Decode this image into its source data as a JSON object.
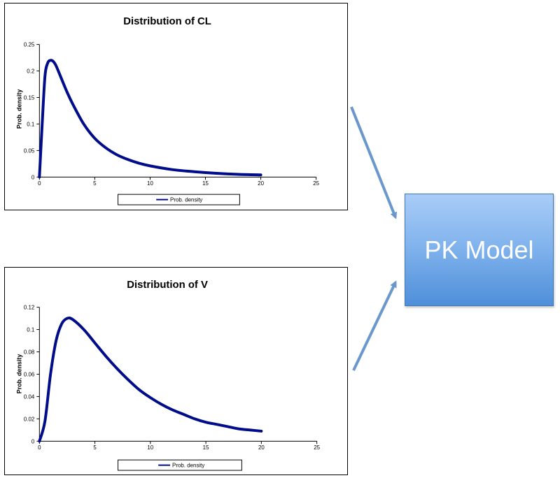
{
  "colors": {
    "curve": "#000c8a",
    "arrow": "#6a98cc",
    "box_top": "#a9cdf7",
    "box_bottom": "#4f8fd9"
  },
  "model_box": {
    "label": "PK Model"
  },
  "chart_data": [
    {
      "type": "line",
      "title": "Distribution of CL",
      "xlabel": "",
      "ylabel": "Prob. density",
      "xlim": [
        0,
        25
      ],
      "ylim": [
        0,
        0.25
      ],
      "x_ticks": [
        "0",
        "5",
        "10",
        "15",
        "20",
        "25"
      ],
      "y_ticks": [
        "0",
        "0.05",
        "0.1",
        "0.15",
        "0.2",
        "0.25"
      ],
      "legend": {
        "position": "bottom",
        "entries": [
          "Prob. density"
        ]
      },
      "series": [
        {
          "name": "Prob. density",
          "x": [
            0,
            0.25,
            0.5,
            0.75,
            1,
            1.25,
            1.5,
            2,
            2.5,
            3,
            4,
            5,
            6,
            7,
            8,
            9,
            10,
            12,
            14,
            16,
            18,
            20
          ],
          "y": [
            0,
            0.1,
            0.19,
            0.215,
            0.22,
            0.218,
            0.21,
            0.185,
            0.16,
            0.138,
            0.1,
            0.073,
            0.055,
            0.042,
            0.033,
            0.026,
            0.021,
            0.014,
            0.01,
            0.007,
            0.005,
            0.004
          ]
        }
      ]
    },
    {
      "type": "line",
      "title": "Distribution of V",
      "xlabel": "",
      "ylabel": "Prob. density",
      "xlim": [
        0,
        25
      ],
      "ylim": [
        0,
        0.12
      ],
      "x_ticks": [
        "0",
        "5",
        "10",
        "15",
        "20",
        "25"
      ],
      "y_ticks": [
        "0",
        "0.02",
        "0.04",
        "0.06",
        "0.08",
        "0.1",
        "0.12"
      ],
      "legend": {
        "position": "bottom",
        "entries": [
          "Prob. density"
        ]
      },
      "series": [
        {
          "name": "Prob. density",
          "x": [
            0,
            0.5,
            1,
            1.5,
            2,
            2.5,
            3,
            4,
            5,
            6,
            7,
            8,
            9,
            10,
            11,
            12,
            13,
            14,
            15,
            16,
            17,
            18,
            19,
            20
          ],
          "y": [
            0,
            0.018,
            0.06,
            0.09,
            0.105,
            0.11,
            0.109,
            0.1,
            0.088,
            0.076,
            0.065,
            0.055,
            0.046,
            0.039,
            0.033,
            0.028,
            0.024,
            0.02,
            0.017,
            0.015,
            0.013,
            0.011,
            0.01,
            0.009
          ]
        }
      ]
    }
  ]
}
